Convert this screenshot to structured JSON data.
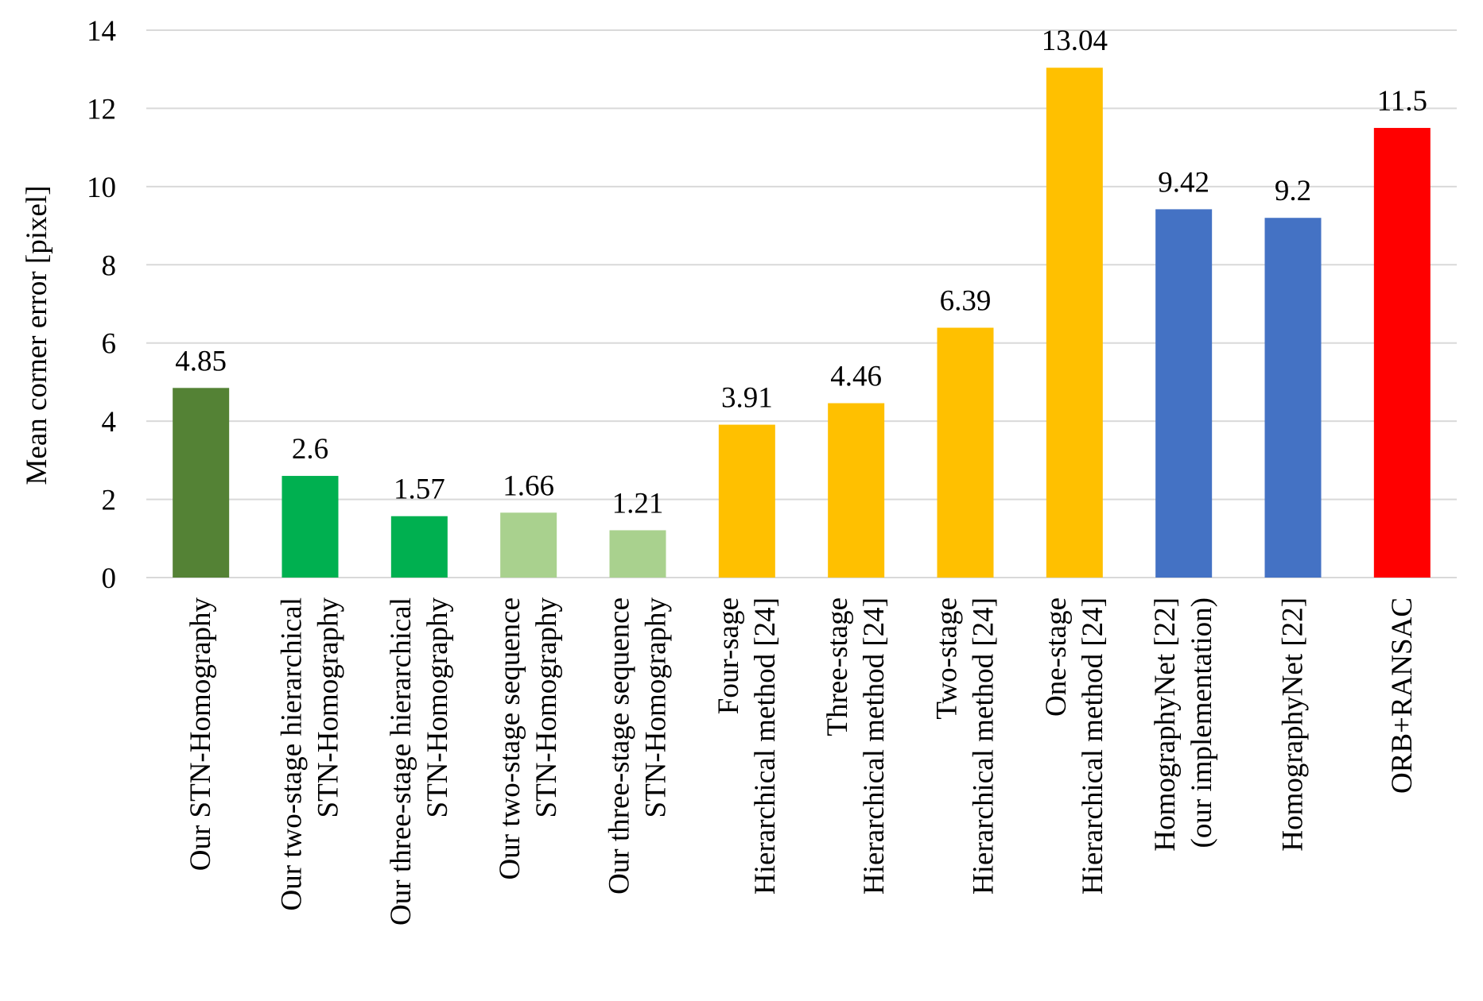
{
  "chart_data": {
    "type": "bar",
    "title": "",
    "xlabel": "",
    "ylabel": "Mean corner error [pixel]",
    "ylim": [
      0,
      14
    ],
    "yticks": [
      0,
      2,
      4,
      6,
      8,
      10,
      12,
      14
    ],
    "grid": true,
    "legend": "none",
    "categories": [
      [
        "Our STN-Homography"
      ],
      [
        "Our two-stage hierarchical",
        "STN-Homography"
      ],
      [
        "Our three-stage hierarchical",
        "STN-Homography"
      ],
      [
        "Our two-stage sequence",
        "STN-Homography"
      ],
      [
        "Our three-stage sequence",
        "STN-Homography"
      ],
      [
        "Four-sage",
        "Hierarchical method [24]"
      ],
      [
        "Three-stage",
        "Hierarchical method [24]"
      ],
      [
        "Two-stage",
        "Hierarchical method [24]"
      ],
      [
        "One-stage",
        "Hierarchical method [24]"
      ],
      [
        "HomographyNet [22]",
        "(our implementation)"
      ],
      [
        "HomographyNet [22]"
      ],
      [
        "ORB+RANSAC"
      ]
    ],
    "values": [
      4.85,
      2.6,
      1.57,
      1.66,
      1.21,
      3.91,
      4.46,
      6.39,
      13.04,
      9.42,
      9.2,
      11.5
    ],
    "data_labels": [
      "4.85",
      "2.6",
      "1.57",
      "1.66",
      "1.21",
      "3.91",
      "4.46",
      "6.39",
      "13.04",
      "9.42",
      "9.2",
      "11.5"
    ],
    "colors": [
      "#548235",
      "#00b050",
      "#00b050",
      "#a9d18e",
      "#a9d18e",
      "#ffc000",
      "#ffc000",
      "#ffc000",
      "#ffc000",
      "#4472c4",
      "#4472c4",
      "#ff0000"
    ]
  }
}
